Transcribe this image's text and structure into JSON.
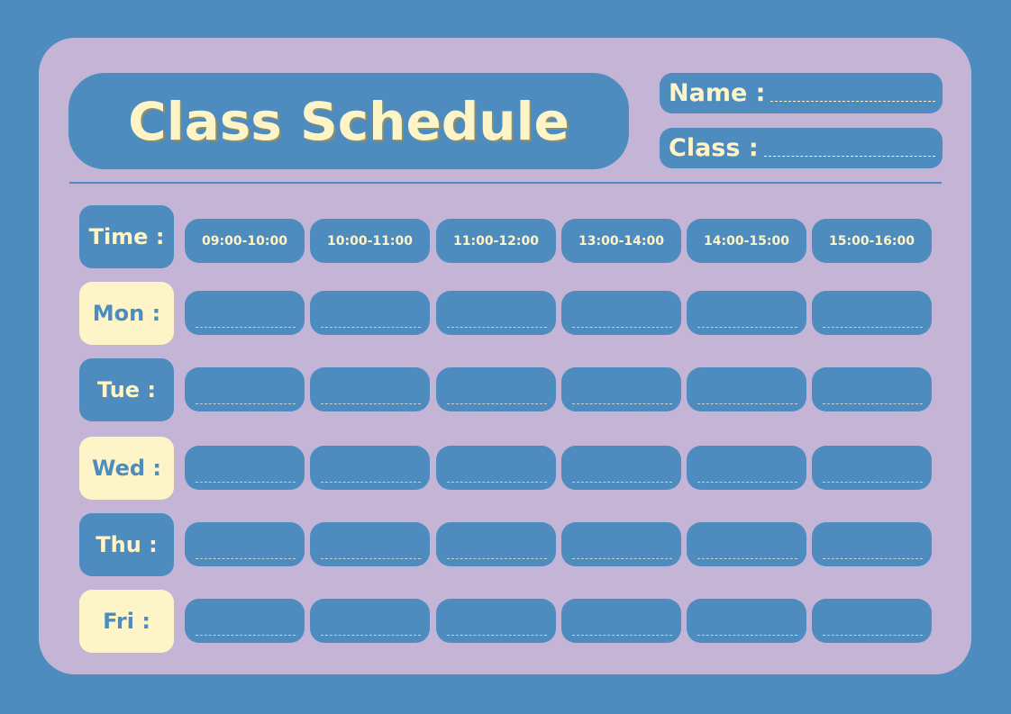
{
  "colors": {
    "background": "#4e8bbf",
    "card": "#c4b5d6",
    "cream": "#fdf5c8"
  },
  "title": "Class Schedule",
  "fields": {
    "name_label": "Name :",
    "class_label": "Class :"
  },
  "time_label": "Time :",
  "time_slots": [
    "09:00-10:00",
    "10:00-11:00",
    "11:00-12:00",
    "13:00-14:00",
    "14:00-15:00",
    "15:00-16:00"
  ],
  "days": [
    {
      "label": "Mon :",
      "style": "cream"
    },
    {
      "label": "Tue :",
      "style": "blue"
    },
    {
      "label": "Wed :",
      "style": "cream"
    },
    {
      "label": "Thu :",
      "style": "blue"
    },
    {
      "label": "Fri :",
      "style": "cream"
    }
  ]
}
